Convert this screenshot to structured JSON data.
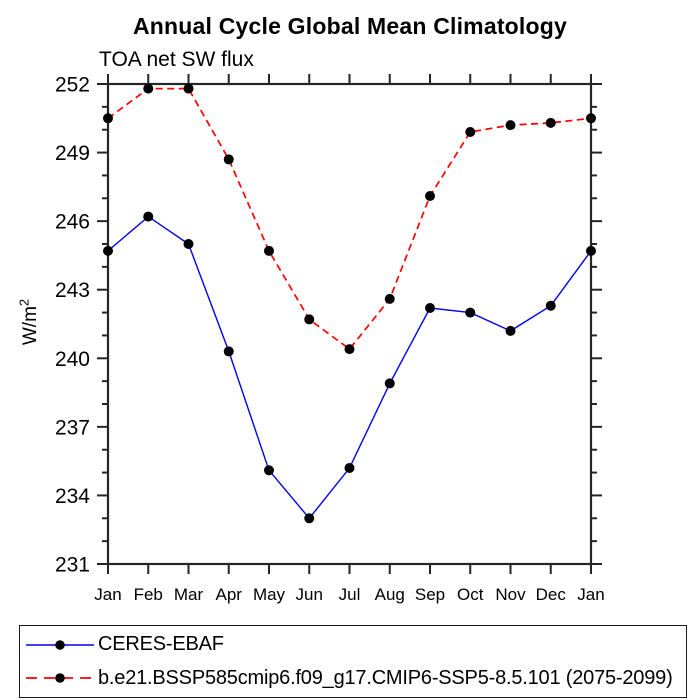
{
  "title": "Annual Cycle Global Mean Climatology",
  "subtitle": "TOA net SW flux",
  "y_axis": {
    "label_base": "W/m",
    "label_sup": "2"
  },
  "colors": {
    "ceres_line": "#0000ee",
    "model_line": "#ff0000",
    "marker": "#000000",
    "axis": "#262626"
  },
  "chart_data": {
    "type": "line",
    "title": "Annual Cycle Global Mean Climatology",
    "subtitle": "TOA net SW flux",
    "xlabel": "",
    "ylabel": "W/m²",
    "categories": [
      "Jan",
      "Feb",
      "Mar",
      "Apr",
      "May",
      "Jun",
      "Jul",
      "Aug",
      "Sep",
      "Oct",
      "Nov",
      "Dec",
      "Jan"
    ],
    "ylim": [
      231,
      252
    ],
    "yticks": [
      231,
      234,
      237,
      240,
      243,
      246,
      249,
      252
    ],
    "ytick_minor_step": 1,
    "grid": false,
    "legend_position": "bottom",
    "series": [
      {
        "name": "CERES-EBAF",
        "color": "#0000ee",
        "line_style": "solid",
        "marker": "circle",
        "values": [
          244.7,
          246.2,
          245.0,
          240.3,
          235.1,
          233.0,
          235.2,
          238.9,
          242.2,
          242.0,
          241.2,
          242.3,
          244.7
        ]
      },
      {
        "name": "b.e21.BSSP585cmip6.f09_g17.CMIP6-SSP5-8.5.101 (2075-2099)",
        "color": "#ff0000",
        "line_style": "dashed",
        "marker": "circle",
        "values": [
          250.5,
          251.8,
          251.8,
          248.7,
          244.7,
          241.7,
          240.4,
          242.6,
          247.1,
          249.9,
          250.2,
          250.3,
          250.5
        ]
      }
    ]
  }
}
